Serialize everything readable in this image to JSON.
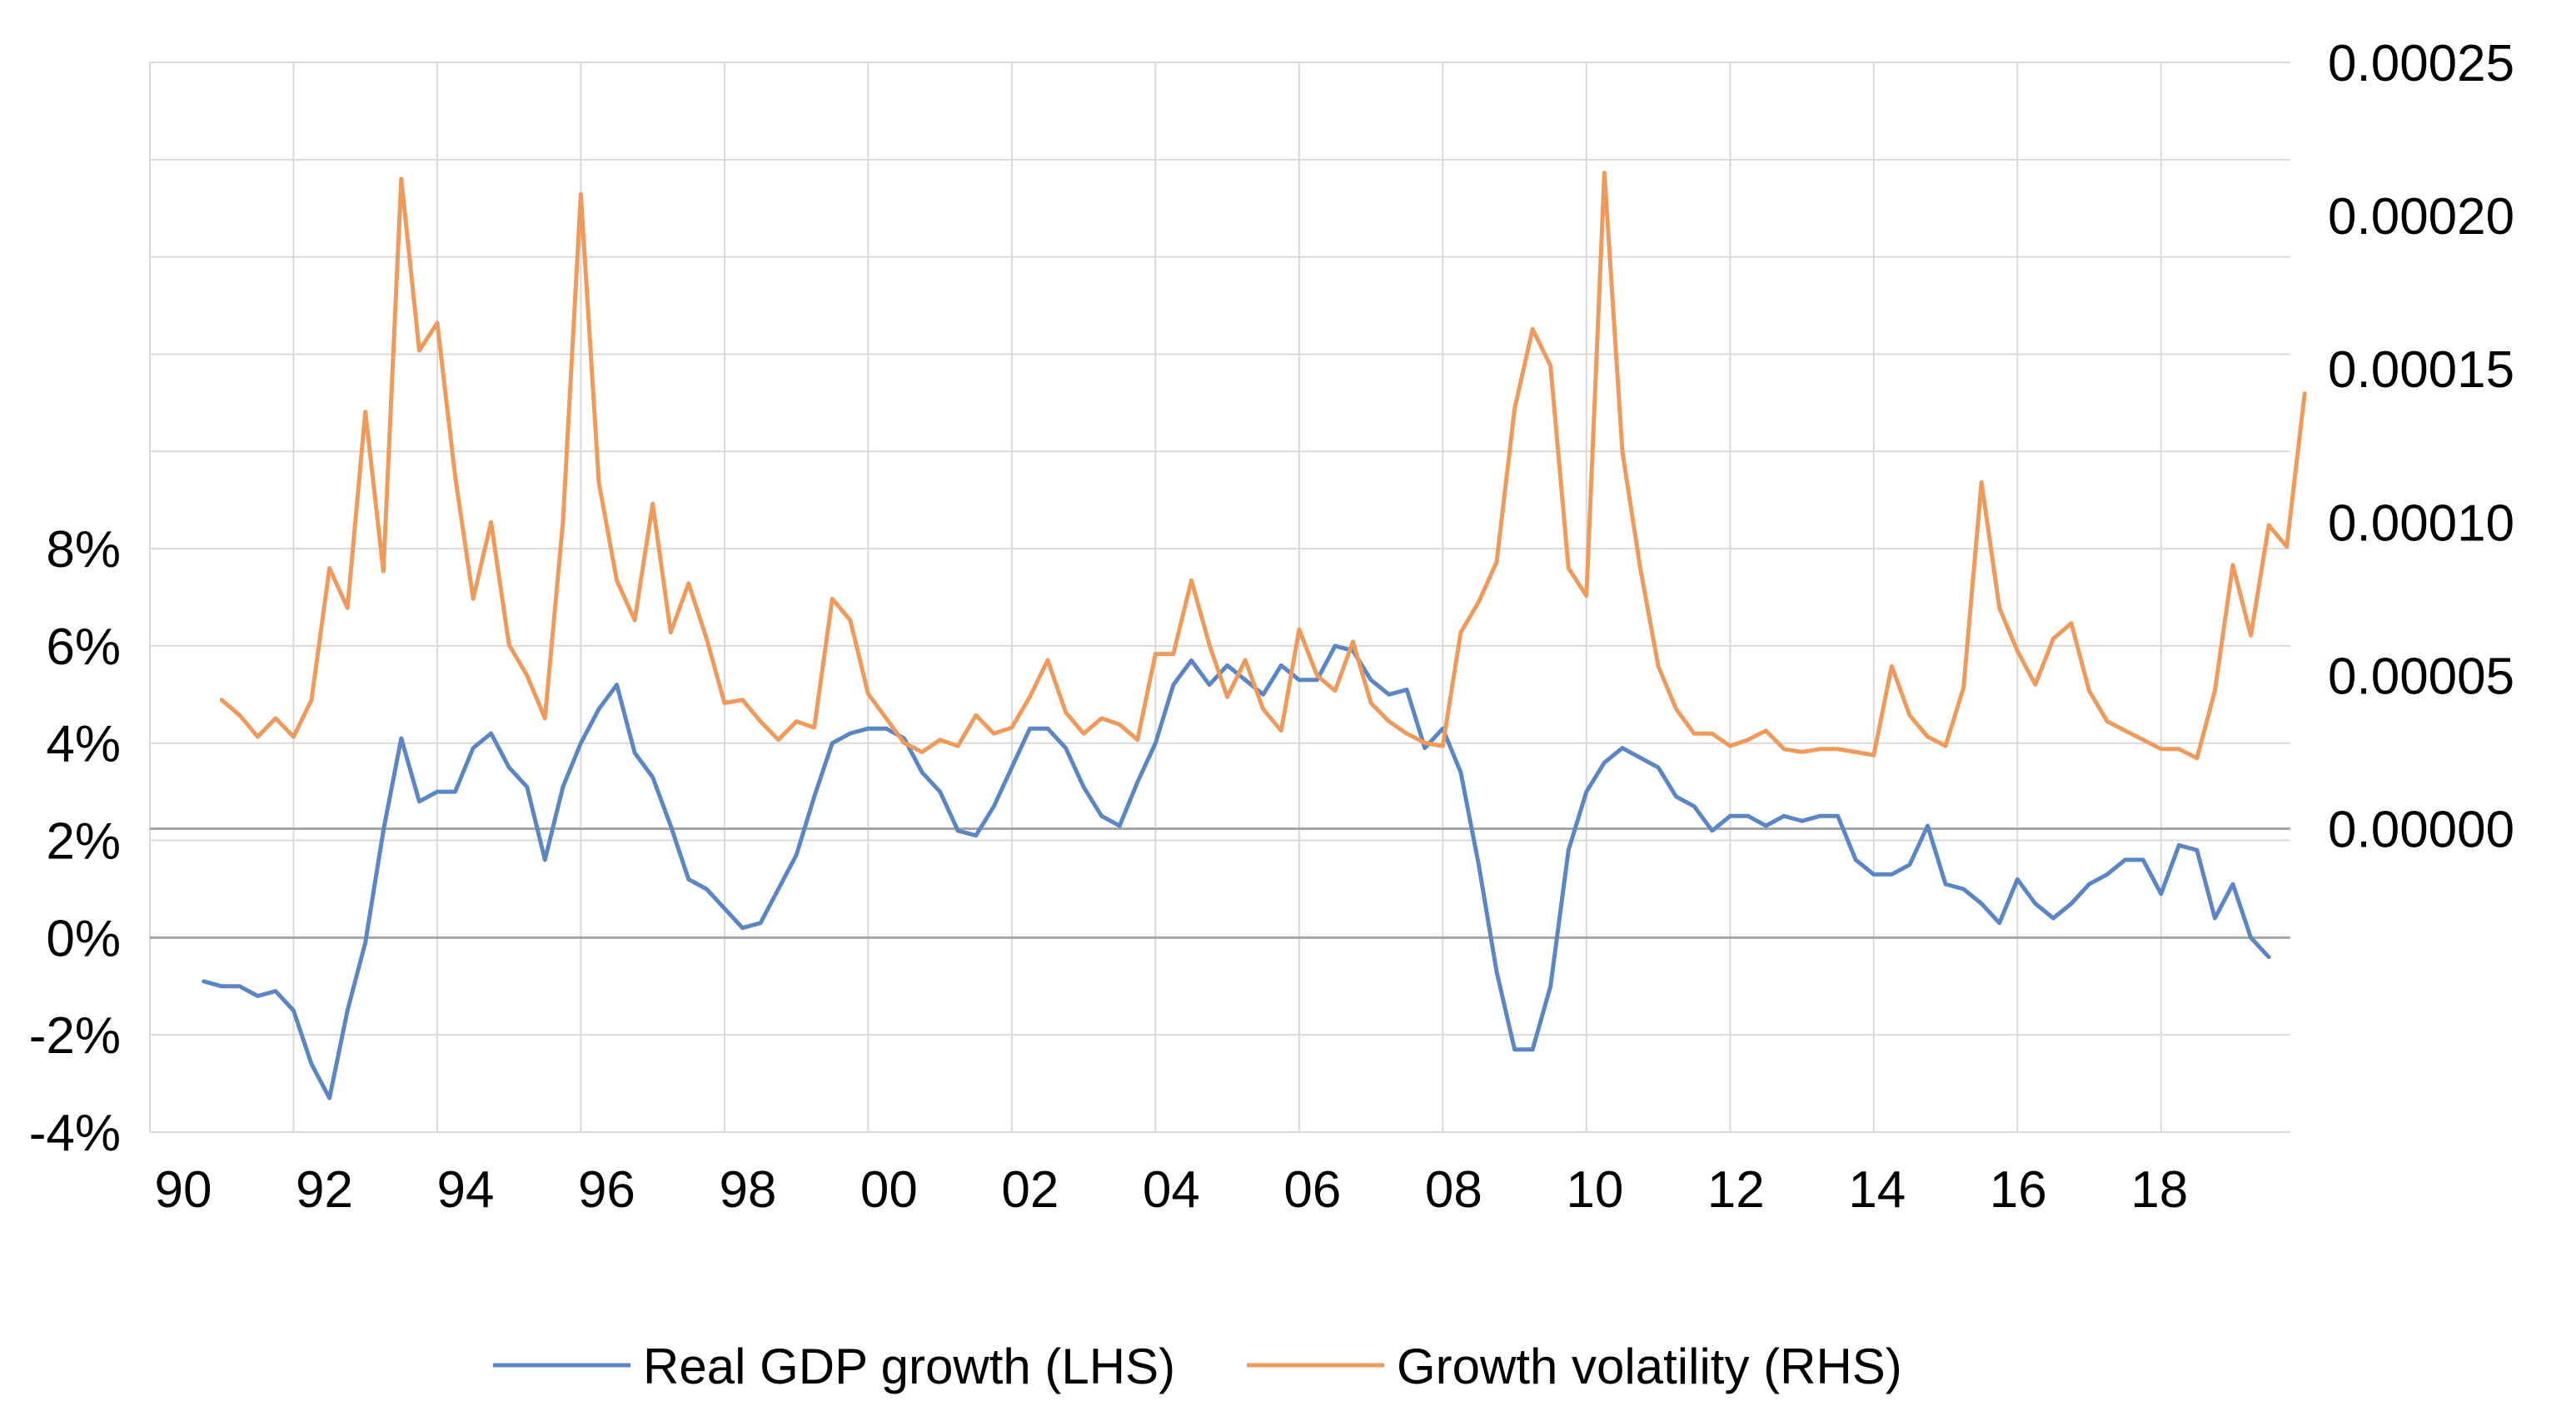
{
  "chart_data": {
    "type": "line",
    "title": "",
    "x_tick_labels": [
      "90",
      "92",
      "94",
      "96",
      "98",
      "00",
      "02",
      "04",
      "06",
      "08",
      "10",
      "12",
      "14",
      "16",
      "18"
    ],
    "x_range": [
      1990,
      2019.8
    ],
    "left_axis": {
      "tick_labels": [
        "-4%",
        "-2%",
        "0%",
        "2%",
        "4%",
        "6%",
        "8%"
      ],
      "tick_values": [
        -4,
        -2,
        0,
        2,
        4,
        6,
        8
      ],
      "range": [
        -4,
        18
      ]
    },
    "right_axis": {
      "tick_labels": [
        "0.00000",
        "0.00005",
        "0.00010",
        "0.00015",
        "0.00020",
        "0.00025"
      ],
      "tick_values": [
        0,
        5e-05,
        0.0001,
        0.00015,
        0.0002,
        0.00025
      ],
      "range": [
        -9.9e-05,
        0.00025
      ]
    },
    "grid": true,
    "legend_position": "bottom",
    "series": [
      {
        "name": "Real GDP growth (LHS)",
        "axis": "left",
        "color": "#5b86c5",
        "start": 1990.75,
        "step": 0.25,
        "values": [
          -0.9,
          -1.0,
          -1.0,
          -1.2,
          -1.1,
          -1.5,
          -2.6,
          -3.3,
          -1.5,
          -0.1,
          2.2,
          4.1,
          2.8,
          3.0,
          3.0,
          3.9,
          4.2,
          3.5,
          3.1,
          1.6,
          3.1,
          4.0,
          4.7,
          5.2,
          3.8,
          3.3,
          2.3,
          1.2,
          1.0,
          0.6,
          0.2,
          0.3,
          1.0,
          1.7,
          2.9,
          4.0,
          4.2,
          4.3,
          4.3,
          4.1,
          3.4,
          3.0,
          2.2,
          2.1,
          2.7,
          3.5,
          4.3,
          4.3,
          3.9,
          3.1,
          2.5,
          2.3,
          3.2,
          4.0,
          5.2,
          5.7,
          5.2,
          5.6,
          5.3,
          5.0,
          5.6,
          5.3,
          5.3,
          6.0,
          5.9,
          5.3,
          5.0,
          5.1,
          3.9,
          4.3,
          3.4,
          1.5,
          -0.7,
          -2.3,
          -2.3,
          -1.0,
          1.8,
          3.0,
          3.6,
          3.9,
          3.7,
          3.5,
          2.9,
          2.7,
          2.2,
          2.5,
          2.5,
          2.3,
          2.5,
          2.4,
          2.5,
          2.5,
          1.6,
          1.3,
          1.3,
          1.5,
          2.3,
          1.1,
          1.0,
          0.7,
          0.3,
          1.2,
          0.7,
          0.4,
          0.7,
          1.1,
          1.3,
          1.6,
          1.6,
          0.9,
          1.9,
          1.8,
          0.4,
          1.1,
          0.0,
          -0.4
        ]
      },
      {
        "name": "Growth volatility (RHS)",
        "axis": "right",
        "color": "#ef9a5a",
        "start": 1991.0,
        "step": 0.25,
        "values": [
          4.2e-05,
          3.7e-05,
          3e-05,
          3.6e-05,
          3e-05,
          4.2e-05,
          8.5e-05,
          7.2e-05,
          0.000136,
          8.4e-05,
          0.000212,
          0.000156,
          0.000165,
          0.000115,
          7.5e-05,
          0.0001,
          6e-05,
          5e-05,
          3.6e-05,
          0.0001,
          0.000207,
          0.000113,
          8.1e-05,
          6.8e-05,
          0.000106,
          6.4e-05,
          8e-05,
          6.2e-05,
          4.1e-05,
          4.2e-05,
          3.5e-05,
          2.9e-05,
          3.5e-05,
          3.3e-05,
          7.5e-05,
          6.8e-05,
          4.4e-05,
          3.6e-05,
          2.8e-05,
          2.5e-05,
          2.9e-05,
          2.7e-05,
          3.7e-05,
          3.1e-05,
          3.3e-05,
          4.3e-05,
          5.5e-05,
          3.8e-05,
          3.1e-05,
          3.6e-05,
          3.4e-05,
          2.9e-05,
          5.7e-05,
          5.7e-05,
          8.1e-05,
          6e-05,
          4.3e-05,
          5.5e-05,
          3.9e-05,
          3.2e-05,
          6.5e-05,
          5e-05,
          4.5e-05,
          6.1e-05,
          4.1e-05,
          3.5e-05,
          3.1e-05,
          2.8e-05,
          2.7e-05,
          6.4e-05,
          7.4e-05,
          8.7e-05,
          0.000137,
          0.000163,
          0.000151,
          8.5e-05,
          7.6e-05,
          0.000214,
          0.000123,
          8.5e-05,
          5.3e-05,
          3.9e-05,
          3.1e-05,
          3.1e-05,
          2.7e-05,
          2.9e-05,
          3.2e-05,
          2.6e-05,
          2.5e-05,
          2.6e-05,
          2.6e-05,
          2.5e-05,
          2.4e-05,
          5.3e-05,
          3.7e-05,
          3e-05,
          2.7e-05,
          4.6e-05,
          0.000113,
          7.2e-05,
          5.8e-05,
          4.7e-05,
          6.2e-05,
          6.7e-05,
          4.5e-05,
          3.5e-05,
          3.2e-05,
          2.9e-05,
          2.6e-05,
          2.6e-05,
          2.3e-05,
          4.5e-05,
          8.6e-05,
          6.3e-05,
          9.9e-05,
          9.2e-05,
          0.000142
        ]
      }
    ]
  }
}
